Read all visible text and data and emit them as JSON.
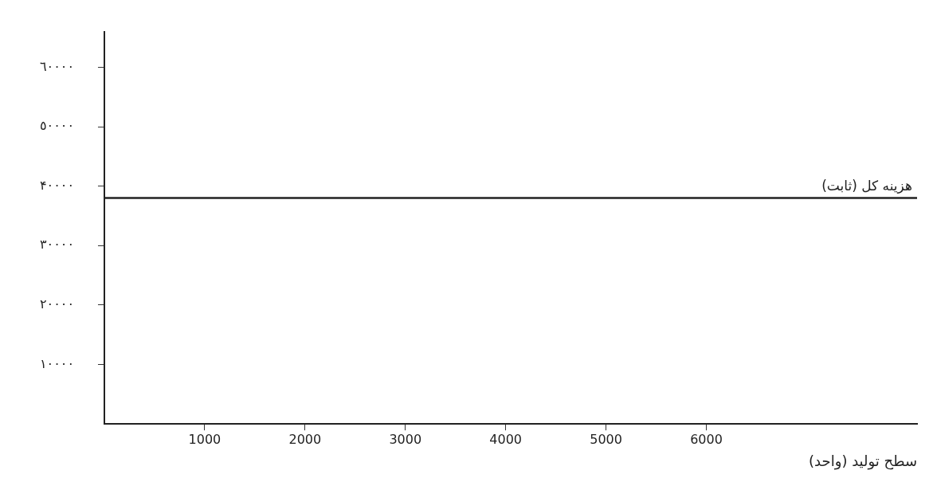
{
  "chart_data": {
    "type": "line",
    "xlabel": "سطح تولید (واحد)",
    "x": [
      0,
      8100
    ],
    "series": [
      {
        "color": "#222222",
        "values": [
          38000,
          38000
        ]
      }
    ],
    "xlim": [
      0,
      8100
    ],
    "xticks": [
      1000,
      2000,
      3000,
      4000,
      5000,
      6000
    ],
    "ylim": [
      0,
      66000
    ],
    "yticks": [
      {
        "value": 10000,
        "label": "١٠٠٠٠"
      },
      {
        "value": 20000,
        "label": "٢٠٠٠٠"
      },
      {
        "value": 30000,
        "label": "٣٠٠٠٠"
      },
      {
        "value": 40000,
        "label": "۴٠٠٠٠"
      },
      {
        "value": 50000,
        "label": "٥٠٠٠٠"
      },
      {
        "value": 60000,
        "label": "٦٠٠٠٠"
      }
    ],
    "annotations": [
      {
        "text": "هزینه کل (ثابت)",
        "x": 7600,
        "y": 38000
      }
    ],
    "grid": false,
    "legend": false,
    "marker": "none",
    "line_style": "solid"
  }
}
